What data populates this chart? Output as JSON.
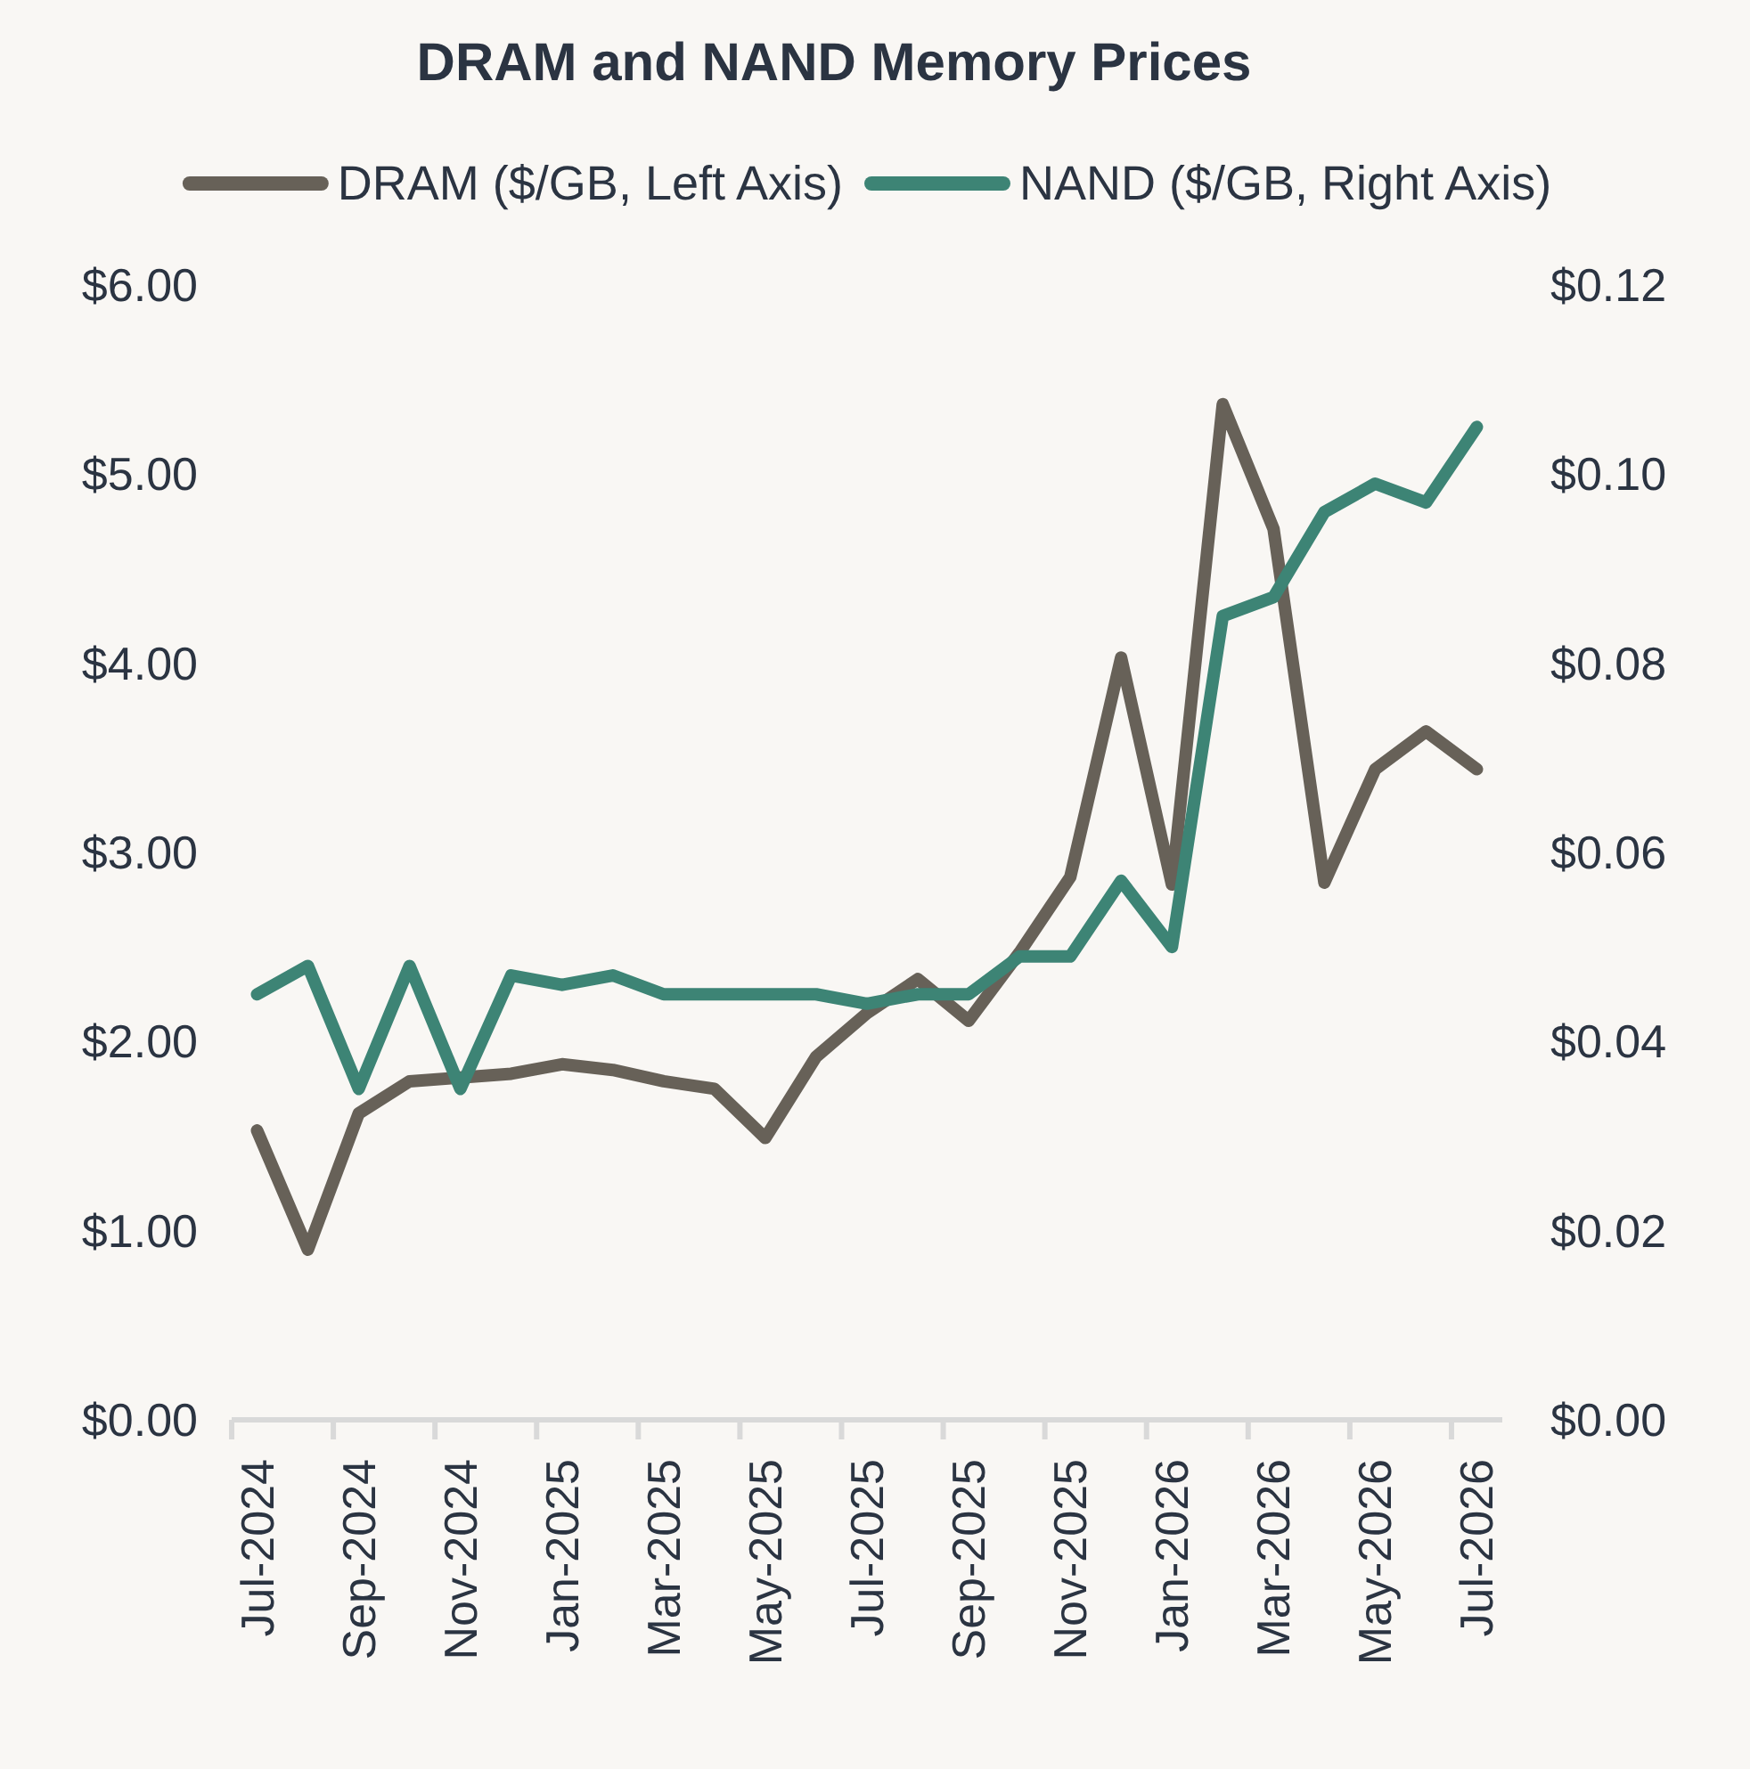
{
  "chart_data": {
    "type": "line",
    "title": "DRAM and NAND Memory Prices",
    "categories": [
      "Jul-2024",
      null,
      "Sep-2024",
      null,
      "Nov-2024",
      null,
      "Jan-2025",
      null,
      "Mar-2025",
      null,
      "May-2025",
      null,
      "Jul-2025",
      null,
      "Sep-2025",
      null,
      "Nov-2025",
      null,
      "Jan-2026",
      null,
      "Mar-2026",
      null,
      "May-2026",
      null,
      "Jul-2026"
    ],
    "series": [
      {
        "name": "DRAM ($/GB, Left Axis)",
        "color": "#676158",
        "values": [
          1.53,
          0.9,
          1.62,
          1.79,
          1.81,
          1.83,
          1.88,
          1.85,
          1.79,
          1.75,
          1.49,
          1.92,
          2.15,
          2.33,
          2.11,
          2.47,
          2.87,
          4.03,
          2.83,
          5.37,
          4.71,
          2.84,
          3.44,
          3.64,
          3.44
        ]
      },
      {
        "name": "NAND ($/GB, Right Axis)",
        "color": "#3d8475",
        "axis": "y2",
        "values": [
          0.045,
          0.048,
          0.035,
          0.048,
          0.035,
          0.047,
          0.046,
          0.047,
          0.045,
          0.045,
          0.045,
          0.045,
          0.044,
          0.045,
          0.045,
          0.049,
          0.049,
          0.057,
          0.05,
          0.085,
          0.087,
          0.096,
          0.099,
          0.097,
          0.105
        ]
      }
    ],
    "ylim": [
      0,
      6
    ],
    "yticks": [
      {
        "value": 0,
        "label": "$0.00"
      },
      {
        "value": 1,
        "label": "$1.00"
      },
      {
        "value": 2,
        "label": "$2.00"
      },
      {
        "value": 3,
        "label": "$3.00"
      },
      {
        "value": 4,
        "label": "$4.00"
      },
      {
        "value": 5,
        "label": "$5.00"
      },
      {
        "value": 6,
        "label": "$6.00"
      }
    ],
    "y2lim": [
      0,
      0.12
    ],
    "y2ticks": [
      {
        "value": 0,
        "label": "$0.00"
      },
      {
        "value": 0.02,
        "label": "$0.02"
      },
      {
        "value": 0.04,
        "label": "$0.04"
      },
      {
        "value": 0.06,
        "label": "$0.06"
      },
      {
        "value": 0.08,
        "label": "$0.08"
      },
      {
        "value": 0.1,
        "label": "$0.10"
      },
      {
        "value": 0.12,
        "label": "$0.12"
      }
    ],
    "legend": "top"
  }
}
